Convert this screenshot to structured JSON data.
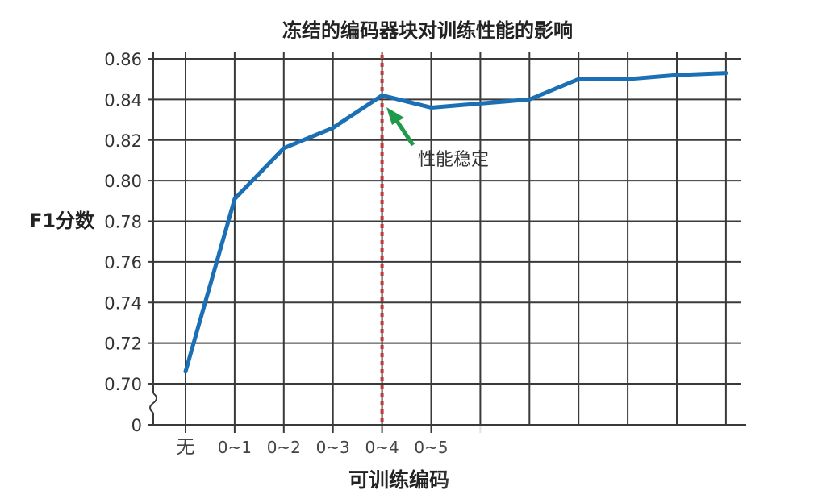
{
  "chart_data": {
    "type": "line",
    "title": "冻结的编码器块对训练性能的影响",
    "xlabel": "可训练编码",
    "ylabel": "F1分数",
    "categories": [
      "无",
      "0~1",
      "0~2",
      "0~3",
      "0~4",
      "0~5",
      "",
      "",
      "",
      "",
      "",
      ""
    ],
    "series": [
      {
        "values": [
          0.706,
          0.791,
          0.816,
          0.826,
          0.842,
          0.836,
          0.838,
          0.84,
          0.85,
          0.85,
          0.852,
          0.853
        ]
      }
    ],
    "y_ticks": [
      "0.86",
      "0.84",
      "0.82",
      "0.80",
      "0.78",
      "0.76",
      "0.74",
      "0.72",
      "0.70",
      "0"
    ],
    "ylim": [
      0.7,
      0.86
    ],
    "y_axis_break": true,
    "grid": true,
    "marker_line_category": "0~4",
    "annotation": "性能稳定",
    "colors": {
      "line": "#1a6fb5",
      "grid": "#3a3a3a",
      "marker_line": "#c0393b",
      "arrow": "#1e9a4a"
    }
  }
}
